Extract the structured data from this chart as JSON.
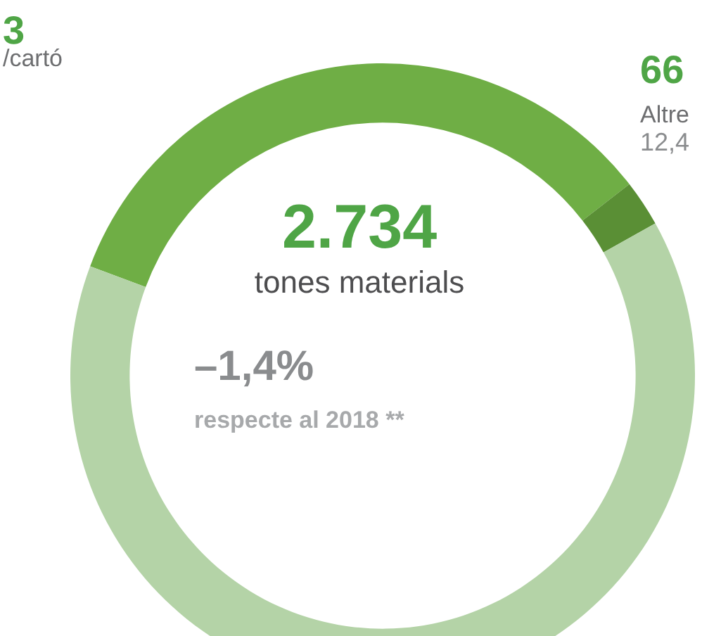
{
  "chart_data": {
    "type": "donut",
    "title": "2.734",
    "subtitle": "tones materials",
    "categories": [
      null,
      null,
      null
    ],
    "values": [
      33.8,
      2.4,
      63.8
    ],
    "colors": [
      "#6fae45",
      "#5a8f35",
      "#b4d3a7"
    ],
    "annotations": [
      "–1,4%",
      "respecte al 2018 **",
      "3",
      "/cartó",
      "66",
      "Altre",
      "12,4"
    ]
  }
}
